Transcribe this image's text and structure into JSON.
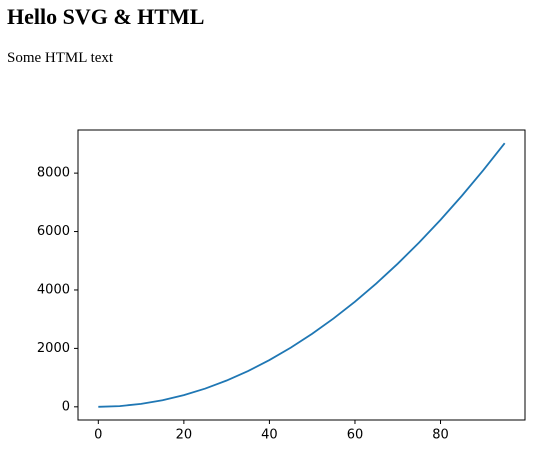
{
  "title": "Hello SVG & HTML",
  "text": "Some HTML text",
  "chart_data": {
    "type": "line",
    "x": [
      0,
      5,
      10,
      15,
      20,
      25,
      30,
      35,
      40,
      45,
      50,
      55,
      60,
      65,
      70,
      75,
      80,
      85,
      90,
      95
    ],
    "values": [
      0,
      25,
      100,
      225,
      400,
      625,
      900,
      1225,
      1600,
      2025,
      2500,
      3025,
      3600,
      4225,
      4900,
      5625,
      6400,
      7225,
      8100,
      9025
    ],
    "color": "#1f77b4",
    "xlim": [
      -4.75,
      99.75
    ],
    "xticks": [
      0,
      20,
      40,
      60,
      80
    ],
    "ylim": [
      -451.25,
      9476.25
    ],
    "yticks": [
      0,
      2000,
      4000,
      6000,
      8000
    ]
  }
}
